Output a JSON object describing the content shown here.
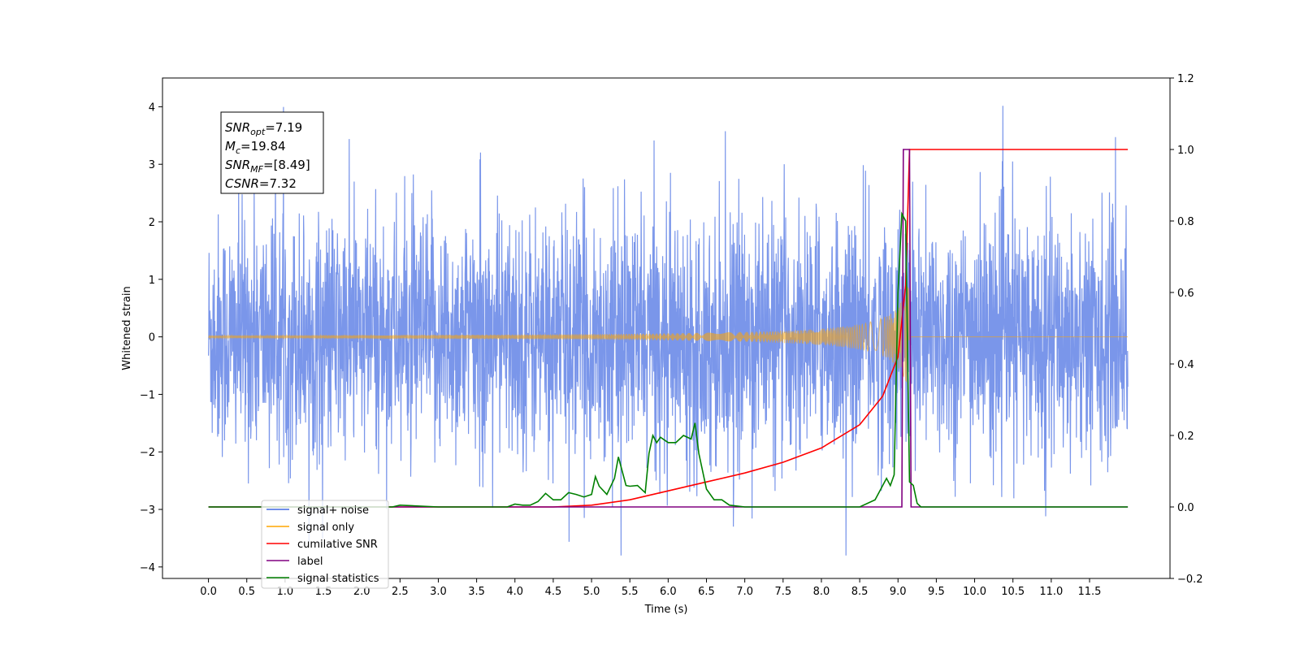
{
  "chart_data": {
    "type": "line",
    "title": "",
    "xlabel": "Time (s)",
    "ylabel": "Whitened strain",
    "y2label": "",
    "xlim": [
      -0.6,
      12.55
    ],
    "ylim": [
      -4.2,
      4.5
    ],
    "y2lim": [
      -0.2,
      1.2
    ],
    "x_ticks": [
      "0.0",
      "0.5",
      "1.0",
      "1.5",
      "2.0",
      "2.5",
      "3.0",
      "3.5",
      "4.0",
      "4.5",
      "5.0",
      "5.5",
      "6.0",
      "6.5",
      "7.0",
      "7.5",
      "8.0",
      "8.5",
      "9.0",
      "9.5",
      "10.0",
      "10.5",
      "11.0",
      "11.5"
    ],
    "y_ticks": [
      "−4",
      "−3",
      "−2",
      "−1",
      "0",
      "1",
      "2",
      "3",
      "4"
    ],
    "y2_ticks": [
      "−0.2",
      "0.0",
      "0.2",
      "0.4",
      "0.6",
      "0.8",
      "1.0",
      "1.2"
    ],
    "grid": false,
    "legend_position": "lower-left",
    "annotation": {
      "lines": [
        {
          "name": "SNR",
          "sub": "opt",
          "value": "=7.19"
        },
        {
          "name": "M",
          "sub": "c",
          "value": "=19.84"
        },
        {
          "name": "SNR",
          "sub": "MF",
          "value": "=[8.49]"
        },
        {
          "name": "CSNR",
          "sub": "",
          "value": "=7.32"
        }
      ]
    },
    "series": [
      {
        "name": "signal+ noise",
        "axis": "left",
        "color": "#4169e1",
        "description_values": "noise band roughly between -2.5 and 2.5 with spikes to ±4",
        "x_range": [
          0.0,
          12.0
        ]
      },
      {
        "name": "signal only",
        "axis": "left",
        "color": "#ffa500",
        "chirp_peak_time": 9.15,
        "chirp_peak_amplitude": 1.0,
        "x_range": [
          0.0,
          12.0
        ]
      },
      {
        "name": "cumilative SNR",
        "axis": "right",
        "color": "#ff0000",
        "x": [
          0.0,
          4.5,
          5.0,
          5.5,
          6.0,
          6.5,
          7.0,
          7.5,
          8.0,
          8.5,
          8.8,
          9.0,
          9.1,
          9.15,
          9.2,
          12.0
        ],
        "y": [
          0.0,
          0.0,
          0.005,
          0.02,
          0.045,
          0.07,
          0.095,
          0.125,
          0.165,
          0.23,
          0.31,
          0.42,
          0.62,
          1.0,
          1.0,
          1.0
        ]
      },
      {
        "name": "label",
        "axis": "right",
        "color": "#800080",
        "x": [
          0.0,
          9.05,
          9.07,
          9.15,
          9.17,
          12.0
        ],
        "y": [
          0.0,
          0.0,
          1.0,
          1.0,
          0.0,
          0.0
        ]
      },
      {
        "name": "signal statistics",
        "axis": "right",
        "color": "#008000",
        "x": [
          0.0,
          2.4,
          2.5,
          3.0,
          3.5,
          3.9,
          4.0,
          4.1,
          4.2,
          4.3,
          4.4,
          4.5,
          4.6,
          4.7,
          4.8,
          4.9,
          5.0,
          5.05,
          5.1,
          5.2,
          5.3,
          5.35,
          5.45,
          5.5,
          5.6,
          5.7,
          5.75,
          5.8,
          5.85,
          5.9,
          6.0,
          6.1,
          6.2,
          6.3,
          6.35,
          6.4,
          6.5,
          6.6,
          6.7,
          6.8,
          7.0,
          7.5,
          8.0,
          8.5,
          8.7,
          8.8,
          8.85,
          8.9,
          8.95,
          9.0,
          9.05,
          9.1,
          9.15,
          9.2,
          9.25,
          9.3,
          12.0
        ],
        "y": [
          0.0,
          0.0,
          0.005,
          0.0,
          0.0,
          0.0,
          0.008,
          0.005,
          0.005,
          0.015,
          0.038,
          0.02,
          0.02,
          0.04,
          0.035,
          0.028,
          0.035,
          0.085,
          0.058,
          0.035,
          0.08,
          0.14,
          0.06,
          0.058,
          0.06,
          0.04,
          0.15,
          0.2,
          0.18,
          0.195,
          0.18,
          0.18,
          0.2,
          0.19,
          0.235,
          0.15,
          0.05,
          0.02,
          0.02,
          0.005,
          0.0,
          0.0,
          0.0,
          0.0,
          0.02,
          0.06,
          0.08,
          0.06,
          0.09,
          0.6,
          0.82,
          0.8,
          0.07,
          0.06,
          0.01,
          0.0,
          0.0
        ]
      }
    ],
    "legend_entries": [
      {
        "label": "signal+ noise",
        "color": "#4169e1"
      },
      {
        "label": "signal only",
        "color": "#ffa500"
      },
      {
        "label": "cumilative SNR",
        "color": "#ff0000"
      },
      {
        "label": "label",
        "color": "#800080"
      },
      {
        "label": "signal statistics",
        "color": "#008000"
      }
    ]
  }
}
